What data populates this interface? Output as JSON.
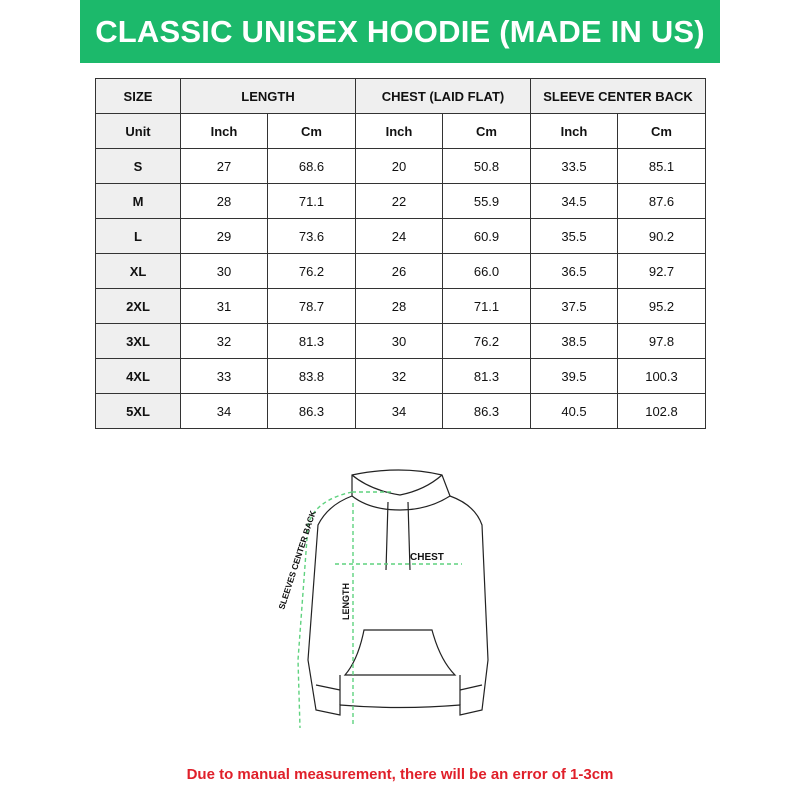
{
  "title": "CLASSIC UNISEX HOODIE (MADE IN US)",
  "table": {
    "headers": [
      "SIZE",
      "LENGTH",
      "CHEST (LAID FLAT)",
      "SLEEVE CENTER BACK"
    ],
    "units": [
      "Unit",
      "Inch",
      "Cm",
      "Inch",
      "Cm",
      "Inch",
      "Cm"
    ],
    "rows": [
      [
        "S",
        "27",
        "68.6",
        "20",
        "50.8",
        "33.5",
        "85.1"
      ],
      [
        "M",
        "28",
        "71.1",
        "22",
        "55.9",
        "34.5",
        "87.6"
      ],
      [
        "L",
        "29",
        "73.6",
        "24",
        "60.9",
        "35.5",
        "90.2"
      ],
      [
        "XL",
        "30",
        "76.2",
        "26",
        "66.0",
        "36.5",
        "92.7"
      ],
      [
        "2XL",
        "31",
        "78.7",
        "28",
        "71.1",
        "37.5",
        "95.2"
      ],
      [
        "3XL",
        "32",
        "81.3",
        "30",
        "76.2",
        "38.5",
        "97.8"
      ],
      [
        "4XL",
        "33",
        "83.8",
        "32",
        "81.3",
        "39.5",
        "100.3"
      ],
      [
        "5XL",
        "34",
        "86.3",
        "34",
        "86.3",
        "40.5",
        "102.8"
      ]
    ]
  },
  "diagram": {
    "chest": "CHEST",
    "length": "LENGTH",
    "sleeve": "SLEEVES CENTER BACK"
  },
  "note": "Due to manual measurement, there will be an error of 1-3cm",
  "colors": {
    "brand": "#1cb96b",
    "note": "#e0202a",
    "measure": "#5fd27f"
  }
}
